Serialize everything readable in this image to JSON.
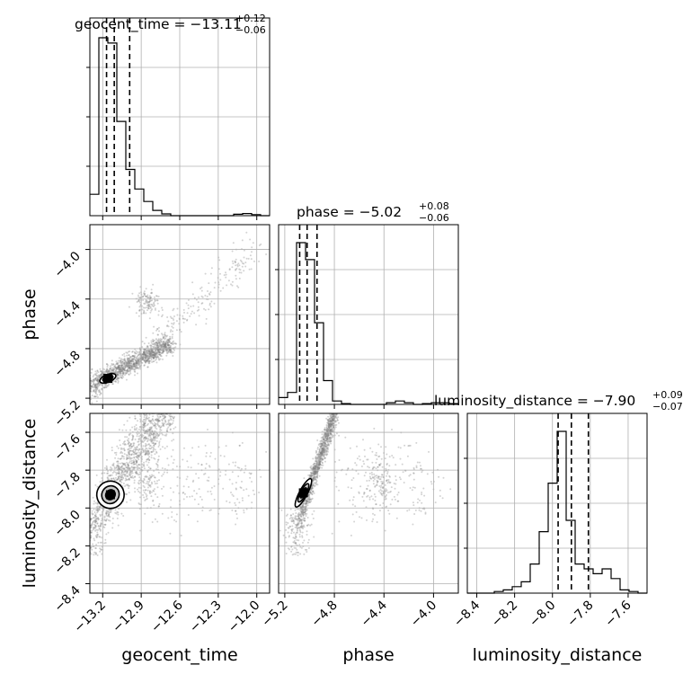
{
  "chart_data": {
    "type": "corner",
    "parameters": [
      "geocent_time",
      "phase",
      "luminosity_distance"
    ],
    "axis_labels": {
      "x": [
        "geocent_time",
        "phase",
        "luminosity_distance"
      ],
      "y": [
        "phase",
        "luminosity_distance"
      ]
    },
    "titles": [
      {
        "param": "geocent_time",
        "prefix": "geocent_time = −13.11",
        "plus": "+0.12",
        "minus": "−0.06"
      },
      {
        "param": "phase",
        "prefix": "phase = −5.02",
        "plus": "+0.08",
        "minus": "−0.06"
      },
      {
        "param": "luminosity_distance",
        "prefix": "luminosity_distance = −7.90",
        "plus": "+0.09",
        "minus": "−0.07"
      }
    ],
    "ranges": {
      "geocent_time": [
        -13.3,
        -11.9
      ],
      "phase": [
        -5.25,
        -3.8
      ],
      "luminosity_distance": [
        -8.45,
        -7.5
      ]
    },
    "ticks": {
      "geocent_time": {
        "values": [
          -13.2,
          -12.9,
          -12.6,
          -12.3,
          -12.0
        ],
        "labels": [
          "−13.2",
          "−12.9",
          "−12.6",
          "−12.3",
          "−12.0"
        ]
      },
      "phase": {
        "values": [
          -5.2,
          -4.8,
          -4.4,
          -4.0
        ],
        "labels": [
          "−5.2",
          "−4.8",
          "−4.4",
          "−4.0"
        ]
      },
      "luminosity_distance": {
        "values": [
          -8.4,
          -8.2,
          -8.0,
          -7.8,
          -7.6
        ],
        "labels": [
          "−8.4",
          "−8.2",
          "−8.0",
          "−7.8",
          "−7.6"
        ]
      }
    },
    "quantiles": {
      "geocent_time": [
        -13.17,
        -13.11,
        -12.99
      ],
      "phase": [
        -5.08,
        -5.02,
        -4.94
      ],
      "luminosity_distance": [
        -7.97,
        -7.9,
        -7.81
      ]
    },
    "histograms": {
      "geocent_time": {
        "edges_start": -13.3,
        "bin_width": 0.07,
        "counts": [
          0.12,
          1.0,
          0.97,
          0.53,
          0.26,
          0.15,
          0.08,
          0.03,
          0.01,
          0,
          0,
          0,
          0,
          0,
          0,
          0,
          0.008,
          0.012,
          0.006,
          0
        ]
      },
      "phase": {
        "edges_start": -5.25,
        "bin_width": 0.0725,
        "counts": [
          0.04,
          0.07,
          0.95,
          0.85,
          0.48,
          0.14,
          0.02,
          0.005,
          0,
          0,
          0,
          0,
          0.01,
          0.02,
          0.01,
          0,
          0.005,
          0.01,
          0.01,
          0.005
        ]
      },
      "luminosity_distance": {
        "edges_start": -8.45,
        "bin_width": 0.0475,
        "counts": [
          0,
          0,
          0,
          0.01,
          0.02,
          0.04,
          0.07,
          0.18,
          0.38,
          0.68,
          1.0,
          0.45,
          0.18,
          0.15,
          0.12,
          0.15,
          0.09,
          0.02,
          0.01,
          0
        ]
      }
    },
    "grid": true,
    "colors": {
      "lines": "#000000",
      "samples": "#808080",
      "grid": "#b0b0b0"
    }
  }
}
